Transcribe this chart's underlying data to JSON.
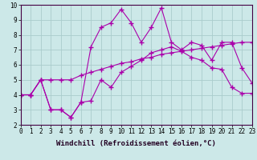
{
  "xlabel": "Windchill (Refroidissement éolien,°C)",
  "xlim": [
    0,
    23
  ],
  "ylim": [
    2,
    10
  ],
  "xticks": [
    0,
    1,
    2,
    3,
    4,
    5,
    6,
    7,
    8,
    9,
    10,
    11,
    12,
    13,
    14,
    15,
    16,
    17,
    18,
    19,
    20,
    21,
    22,
    23
  ],
  "yticks": [
    2,
    3,
    4,
    5,
    6,
    7,
    8,
    9,
    10
  ],
  "background_color": "#cce8e8",
  "grid_color": "#aacccc",
  "line_color": "#aa00aa",
  "line1_x": [
    0,
    1,
    2,
    3,
    4,
    5,
    6,
    7,
    8,
    9,
    10,
    11,
    12,
    13,
    14,
    15,
    16,
    17,
    18,
    19,
    20,
    21,
    22,
    23
  ],
  "line1_y": [
    4.0,
    4.0,
    5.0,
    3.0,
    3.0,
    2.5,
    3.5,
    3.6,
    5.0,
    4.5,
    5.5,
    5.9,
    6.3,
    6.8,
    7.0,
    7.2,
    6.9,
    6.5,
    6.3,
    5.8,
    5.7,
    4.5,
    4.1,
    4.1
  ],
  "line2_x": [
    0,
    1,
    2,
    3,
    4,
    5,
    6,
    7,
    8,
    9,
    10,
    11,
    12,
    13,
    14,
    15,
    16,
    17,
    18,
    19,
    20,
    21,
    22,
    23
  ],
  "line2_y": [
    4.0,
    4.0,
    5.0,
    5.0,
    5.0,
    5.0,
    5.3,
    5.5,
    5.7,
    5.9,
    6.1,
    6.2,
    6.4,
    6.5,
    6.7,
    6.8,
    6.9,
    7.0,
    7.1,
    7.2,
    7.3,
    7.4,
    7.5,
    7.5
  ],
  "line3_x": [
    0,
    1,
    2,
    3,
    4,
    5,
    6,
    7,
    8,
    9,
    10,
    11,
    12,
    13,
    14,
    15,
    16,
    17,
    18,
    19,
    20,
    21,
    22,
    23
  ],
  "line3_y": [
    4.0,
    4.0,
    5.0,
    3.0,
    3.0,
    2.5,
    3.5,
    7.2,
    8.5,
    8.8,
    9.7,
    8.8,
    7.5,
    8.5,
    9.8,
    7.5,
    7.0,
    7.5,
    7.3,
    6.3,
    7.5,
    7.5,
    5.8,
    4.8
  ],
  "marker": "+",
  "markersize": 4,
  "linewidth": 0.8,
  "tick_fontsize": 5.5,
  "xlabel_fontsize": 6.5
}
